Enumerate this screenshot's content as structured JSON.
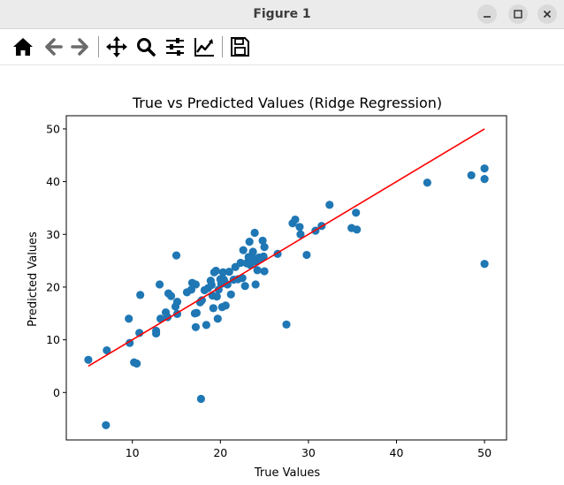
{
  "window": {
    "title": "Figure 1"
  },
  "toolbar": {
    "buttons": [
      {
        "name": "home-button",
        "icon": "home-icon"
      },
      {
        "name": "back-button",
        "icon": "arrow-left-icon"
      },
      {
        "name": "forward-button",
        "icon": "arrow-right-icon"
      },
      {
        "name": "pan-button",
        "icon": "move-icon"
      },
      {
        "name": "zoom-button",
        "icon": "magnifier-icon"
      },
      {
        "name": "subplots-button",
        "icon": "sliders-icon"
      },
      {
        "name": "customize-button",
        "icon": "line-chart-icon"
      },
      {
        "name": "save-button",
        "icon": "floppy-disk-icon"
      }
    ]
  },
  "chart_data": {
    "type": "scatter",
    "title": "True vs Predicted Values (Ridge Regression)",
    "xlabel": "True Values",
    "ylabel": "Predicted Values",
    "xlim": [
      2.5,
      52.5
    ],
    "ylim": [
      -9,
      52.5
    ],
    "xticks": [
      10,
      20,
      30,
      40,
      50
    ],
    "yticks": [
      0,
      10,
      20,
      30,
      40,
      50
    ],
    "grid": false,
    "point_color": "#1f77b4",
    "line_color": "#ff0000",
    "reference_line": {
      "x": [
        5,
        50
      ],
      "y": [
        5,
        50
      ]
    },
    "points": [
      [
        5,
        6.2
      ],
      [
        7,
        -6.2
      ],
      [
        7.1,
        8.0
      ],
      [
        9.7,
        9.4
      ],
      [
        9.6,
        14.0
      ],
      [
        10.2,
        5.7
      ],
      [
        10.5,
        5.5
      ],
      [
        10.9,
        18.5
      ],
      [
        10.8,
        11.3
      ],
      [
        12.7,
        11.7
      ],
      [
        12.7,
        11.2
      ],
      [
        13.1,
        20.5
      ],
      [
        13.2,
        14.0
      ],
      [
        13.8,
        15.2
      ],
      [
        14.0,
        14.3
      ],
      [
        14.1,
        18.8
      ],
      [
        14.4,
        18.3
      ],
      [
        14.9,
        16.3
      ],
      [
        15.0,
        26.0
      ],
      [
        15.1,
        17.2
      ],
      [
        15.1,
        14.9
      ],
      [
        16.2,
        19.0
      ],
      [
        16.7,
        19.5
      ],
      [
        16.8,
        20.8
      ],
      [
        17.2,
        20.5
      ],
      [
        17.1,
        15.0
      ],
      [
        17.2,
        12.4
      ],
      [
        17.3,
        15.1
      ],
      [
        17.7,
        17.1
      ],
      [
        17.9,
        17.5
      ],
      [
        17.8,
        -1.2
      ],
      [
        18.2,
        19.4
      ],
      [
        18.4,
        12.8
      ],
      [
        18.6,
        19.8
      ],
      [
        18.9,
        21.2
      ],
      [
        19.0,
        20.4
      ],
      [
        19.1,
        18.4
      ],
      [
        19.2,
        16.0
      ],
      [
        19.3,
        22.8
      ],
      [
        19.5,
        23.1
      ],
      [
        19.6,
        18.2
      ],
      [
        19.7,
        14.0
      ],
      [
        19.8,
        19.5
      ],
      [
        20.0,
        21.5
      ],
      [
        20.1,
        20.6
      ],
      [
        20.2,
        16.2
      ],
      [
        20.3,
        22.8
      ],
      [
        20.4,
        21.4
      ],
      [
        20.6,
        16.5
      ],
      [
        20.8,
        20.5
      ],
      [
        21.0,
        22.9
      ],
      [
        21.2,
        18.6
      ],
      [
        21.5,
        21.4
      ],
      [
        21.7,
        23.8
      ],
      [
        22.0,
        21.5
      ],
      [
        22.3,
        24.6
      ],
      [
        22.5,
        21.7
      ],
      [
        22.6,
        27.0
      ],
      [
        22.8,
        20.2
      ],
      [
        23.0,
        24.5
      ],
      [
        23.1,
        24.7
      ],
      [
        23.2,
        25.7
      ],
      [
        23.3,
        28.6
      ],
      [
        23.4,
        24.2
      ],
      [
        23.5,
        25.2
      ],
      [
        23.7,
        26.7
      ],
      [
        23.8,
        25.4
      ],
      [
        23.9,
        30.3
      ],
      [
        24.0,
        20.5
      ],
      [
        24.1,
        24.8
      ],
      [
        24.2,
        23.2
      ],
      [
        24.4,
        25.6
      ],
      [
        24.6,
        25.5
      ],
      [
        24.8,
        28.8
      ],
      [
        24.9,
        25.8
      ],
      [
        25.0,
        27.6
      ],
      [
        25.0,
        23.0
      ],
      [
        26.5,
        26.3
      ],
      [
        27.5,
        12.9
      ],
      [
        28.2,
        32.1
      ],
      [
        28.5,
        32.8
      ],
      [
        29.0,
        31.4
      ],
      [
        29.1,
        30.0
      ],
      [
        29.8,
        26.1
      ],
      [
        30.8,
        30.7
      ],
      [
        31.5,
        31.6
      ],
      [
        32.4,
        35.6
      ],
      [
        34.9,
        31.2
      ],
      [
        35.4,
        34.1
      ],
      [
        35.5,
        30.9
      ],
      [
        43.5,
        39.8
      ],
      [
        48.5,
        41.2
      ],
      [
        50.0,
        42.5
      ],
      [
        50.0,
        40.5
      ],
      [
        50.0,
        24.4
      ]
    ]
  }
}
